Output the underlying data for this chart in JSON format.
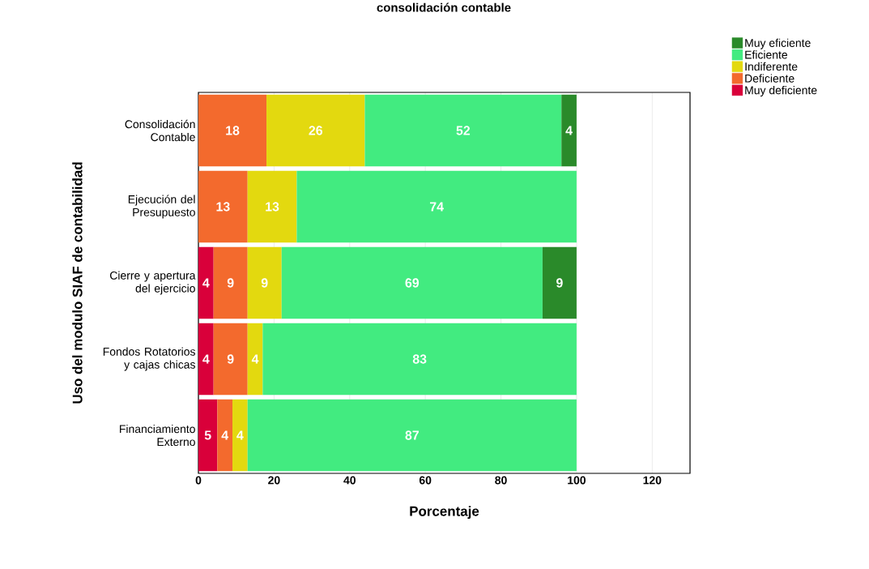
{
  "chart_data": {
    "type": "bar",
    "orientation": "horizontal",
    "stacked": true,
    "title": "consolidación contable",
    "xlabel": "Porcentaje",
    "ylabel": "Uso del modulo SIAF de contabilidad",
    "categories": [
      "Consolidación Contable",
      "Ejecución del Presupuesto",
      "Cierre y apertura del ejercicio",
      "Fondos Rotatorios y cajas chicas",
      "Financiamiento Externo"
    ],
    "series": [
      {
        "name": "Muy deficiente",
        "color": "#d9003a",
        "values": [
          null,
          null,
          4,
          4,
          5
        ]
      },
      {
        "name": "Deficiente",
        "color": "#f36a2d",
        "values": [
          18,
          13,
          9,
          9,
          4
        ]
      },
      {
        "name": "Indiferente",
        "color": "#e3d90f",
        "values": [
          26,
          13,
          9,
          4,
          4
        ]
      },
      {
        "name": "Eficiente",
        "color": "#42eb80",
        "values": [
          52,
          74,
          69,
          83,
          87
        ]
      },
      {
        "name": "Muy eficiente",
        "color": "#2a8a2a",
        "values": [
          4,
          null,
          9,
          null,
          null
        ]
      }
    ],
    "xlim": [
      0,
      130
    ],
    "xticks": [
      0,
      20,
      40,
      60,
      80,
      100,
      120
    ],
    "grid": "x",
    "legend": "top right",
    "data_labels": true
  }
}
